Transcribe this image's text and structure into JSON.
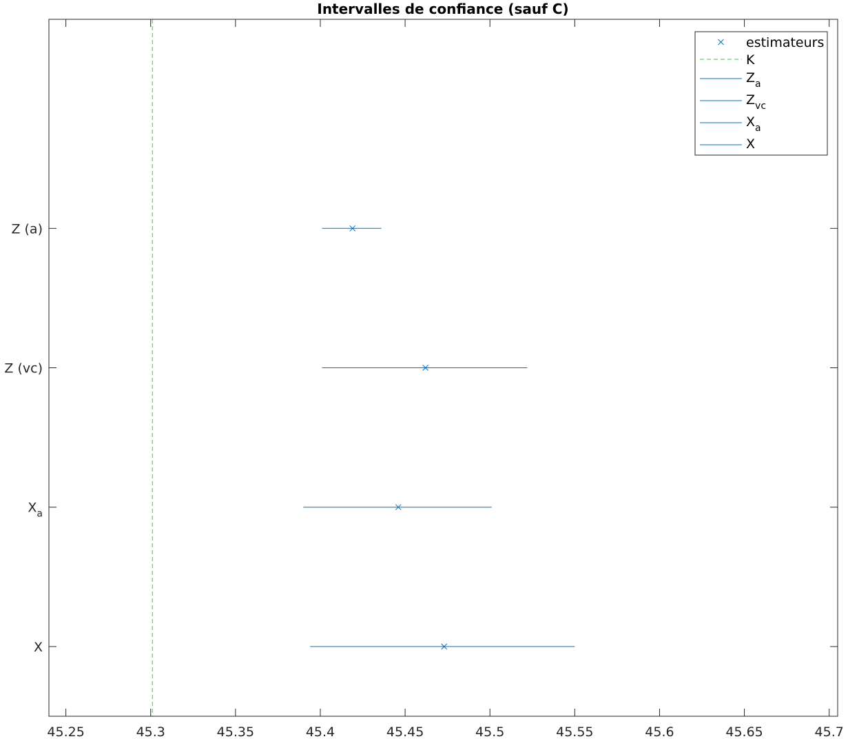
{
  "chart_data": {
    "type": "scatter",
    "title": "Intervalles de confiance (sauf C)",
    "xlabel": "",
    "ylabel": "",
    "xlim": [
      45.24,
      45.705
    ],
    "ylim": [
      -0.5,
      4.5
    ],
    "x_ticks": [
      45.25,
      45.3,
      45.35,
      45.4,
      45.45,
      45.5,
      45.55,
      45.6,
      45.65,
      45.7
    ],
    "x_tick_labels": [
      "45.25",
      "45.3",
      "45.35",
      "45.4",
      "45.45",
      "45.5",
      "45.55",
      "45.6",
      "45.65",
      "45.7"
    ],
    "categories": [
      {
        "label": "X",
        "sub": ""
      },
      {
        "label": "X",
        "sub": "a"
      },
      {
        "label": "Z (vc)",
        "sub": ""
      },
      {
        "label": "Z (a)",
        "sub": ""
      }
    ],
    "grid": false,
    "legend_position": "top-right",
    "reference_line": {
      "name": "K",
      "x": 45.301,
      "color": "#33cc33",
      "style": "dashed"
    },
    "intervals": [
      {
        "name": "Z",
        "sub": "a",
        "y": 3,
        "low": 45.401,
        "high": 45.436,
        "estimate": 45.419,
        "color": "#0072bd"
      },
      {
        "name": "Z",
        "sub": "vc",
        "y": 2,
        "low": 45.401,
        "high": 45.522,
        "estimate": 45.462,
        "color": "#0072bd"
      },
      {
        "name": "X",
        "sub": "a",
        "y": 1,
        "low": 45.39,
        "high": 45.501,
        "estimate": 45.446,
        "color": "#0072bd"
      },
      {
        "name": "X",
        "sub": "",
        "y": 0,
        "low": 45.394,
        "high": 45.55,
        "estimate": 45.473,
        "color": "#0072bd"
      }
    ],
    "estimators": {
      "name": "estimateurs",
      "marker": "x",
      "color": "#0072bd"
    }
  }
}
